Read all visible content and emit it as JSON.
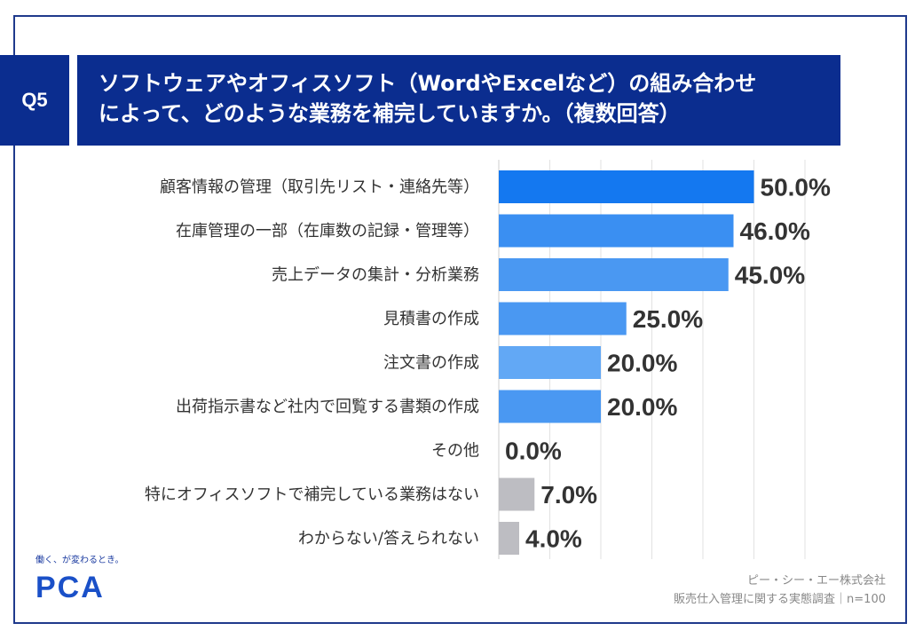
{
  "header": {
    "badge": "Q5",
    "title_line1": "ソフトウェアやオフィスソフト（WordやExcelなど）の組み合わせ",
    "title_line2": "によって、どのような業務を補完していますか。（複数回答）"
  },
  "chart_data": {
    "type": "bar",
    "orientation": "horizontal",
    "categories": [
      "顧客情報の管理（取引先リスト・連絡先等）",
      "在庫管理の一部（在庫数の記録・管理等）",
      "売上データの集計・分析業務",
      "見積書の作成",
      "注文書の作成",
      "出荷指示書など社内で回覧する書類の作成",
      "その他",
      "特にオフィスソフトで補完している業務はない",
      "わからない/答えられない"
    ],
    "values": [
      50.0,
      46.0,
      45.0,
      25.0,
      20.0,
      20.0,
      0.0,
      7.0,
      4.0
    ],
    "value_labels": [
      "50.0%",
      "46.0%",
      "45.0%",
      "25.0%",
      "20.0%",
      "20.0%",
      "0.0%",
      "7.0%",
      "4.0%"
    ],
    "bar_colors": [
      "#1478f0",
      "#3a8ff2",
      "#4a98f2",
      "#4a98f2",
      "#62a8f5",
      "#4a98f2",
      "#62a8f5",
      "#bdbdc2",
      "#bdbdc2"
    ],
    "xlim": [
      0,
      60
    ],
    "grid": true,
    "gridlines": [
      0,
      10,
      20,
      30,
      40,
      50,
      60
    ],
    "title": "",
    "xlabel": "",
    "ylabel": ""
  },
  "logo": {
    "tagline": "働く、が変わるとき。",
    "text": "PCA"
  },
  "source": {
    "company": "ピー・シー・エー株式会社",
    "survey": "販売仕入管理に関する実態調査｜n=100"
  },
  "colors": {
    "primary": "#0b2d8f",
    "frame": "#1f3a8c",
    "bar_gray": "#bdbdc2"
  }
}
